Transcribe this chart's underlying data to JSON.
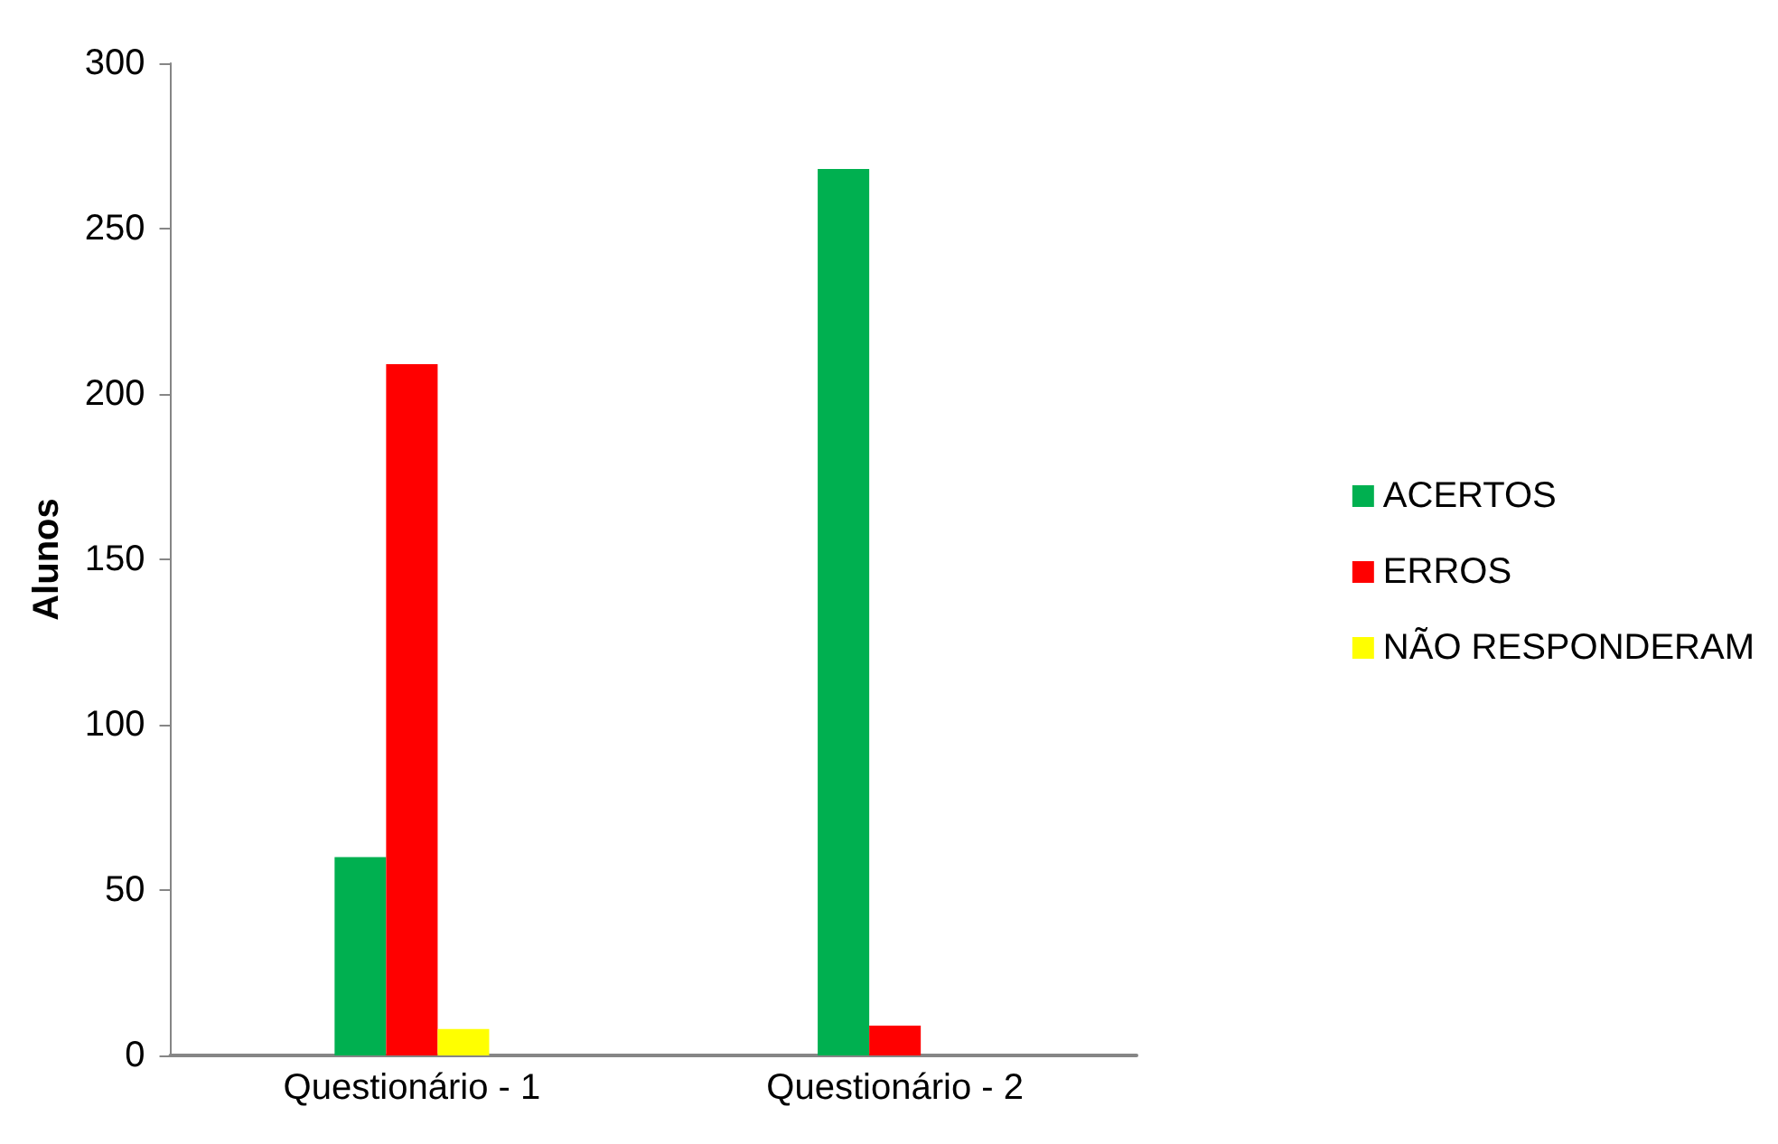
{
  "chart_data": {
    "type": "bar",
    "ylabel": "Alunos",
    "categories": [
      "Questionário - 1",
      "Questionário - 2"
    ],
    "series": [
      {
        "name": "ACERTOS",
        "color": "#00b050",
        "values": [
          60,
          268
        ]
      },
      {
        "name": "ERROS",
        "color": "#ff0000",
        "values": [
          209,
          9
        ]
      },
      {
        "name": "NÃO RESPONDERAM",
        "color": "#ffff00",
        "values": [
          8,
          0
        ]
      }
    ],
    "ylim": [
      0,
      300
    ],
    "yticks": [
      0,
      50,
      100,
      150,
      200,
      250,
      300
    ],
    "grid": false,
    "legend": "right"
  }
}
